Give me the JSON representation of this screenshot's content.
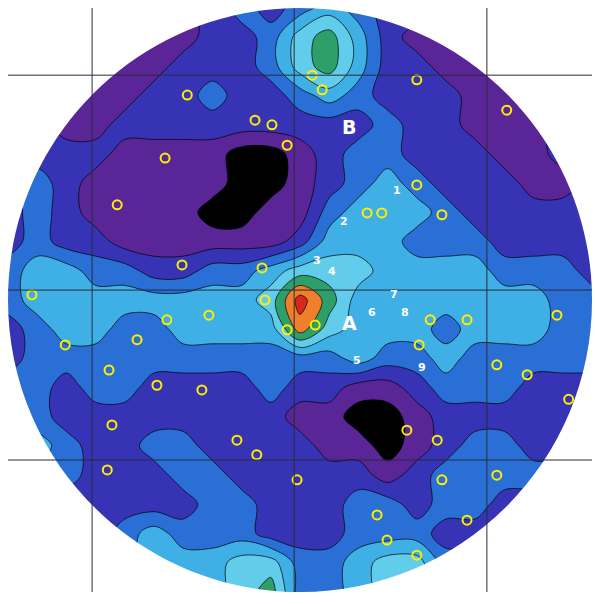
{
  "chart_data": {
    "type": "contour",
    "x": [
      0,
      5,
      10,
      15,
      20,
      25,
      30,
      35,
      40,
      45,
      50,
      55,
      60,
      65,
      70,
      75,
      80,
      85,
      90,
      95,
      100
    ],
    "y": [
      100,
      95,
      90,
      85,
      80,
      75,
      70,
      65,
      60,
      55,
      50,
      45,
      40,
      35,
      30,
      25,
      20,
      15,
      10,
      5,
      0
    ],
    "z": [
      [
        2,
        2,
        2,
        2,
        2,
        1,
        1,
        2,
        3,
        2,
        3,
        4,
        3,
        2,
        2,
        1,
        1,
        2,
        2,
        2,
        2
      ],
      [
        2,
        2,
        2,
        2,
        1,
        1,
        1,
        2,
        2,
        3,
        5,
        6,
        4,
        2,
        1,
        1,
        1,
        2,
        2,
        2,
        2
      ],
      [
        2,
        2,
        2,
        1,
        1,
        1,
        2,
        2,
        2,
        3,
        5,
        6,
        4,
        2,
        2,
        1,
        1,
        1,
        2,
        2,
        3
      ],
      [
        2,
        2,
        1,
        1,
        1,
        2,
        2,
        3,
        2,
        2,
        3,
        4,
        3,
        2,
        2,
        2,
        1,
        1,
        1,
        2,
        2
      ],
      [
        2,
        2,
        1,
        1,
        2,
        2,
        2,
        2,
        2,
        2,
        2,
        2,
        2,
        3,
        2,
        2,
        1,
        1,
        1,
        2,
        2
      ],
      [
        2,
        2,
        2,
        2,
        1,
        1,
        1,
        1,
        0,
        0,
        1,
        2,
        3,
        3,
        2,
        2,
        2,
        1,
        1,
        2,
        2
      ],
      [
        2,
        3,
        2,
        1,
        1,
        1,
        1,
        1,
        0,
        0,
        1,
        2,
        3,
        4,
        3,
        2,
        2,
        2,
        1,
        1,
        2
      ],
      [
        2,
        3,
        2,
        1,
        1,
        1,
        1,
        0,
        0,
        1,
        1,
        3,
        4,
        4,
        4,
        3,
        2,
        2,
        2,
        2,
        2
      ],
      [
        2,
        3,
        2,
        2,
        1,
        1,
        1,
        1,
        1,
        1,
        2,
        4,
        4,
        4,
        3,
        3,
        3,
        2,
        2,
        2,
        2
      ],
      [
        3,
        4,
        4,
        3,
        3,
        2,
        2,
        3,
        3,
        4,
        5,
        5,
        5,
        4,
        4,
        4,
        4,
        3,
        3,
        3,
        2
      ],
      [
        3,
        4,
        4,
        4,
        4,
        4,
        4,
        4,
        4,
        5,
        8,
        6,
        4,
        4,
        4,
        4,
        4,
        4,
        4,
        3,
        3
      ],
      [
        2,
        3,
        4,
        4,
        3,
        3,
        4,
        4,
        4,
        4,
        7,
        5,
        4,
        4,
        4,
        3,
        4,
        4,
        4,
        3,
        3
      ],
      [
        2,
        3,
        3,
        3,
        3,
        3,
        3,
        3,
        3,
        3,
        3,
        3,
        4,
        3,
        3,
        4,
        3,
        3,
        3,
        3,
        3
      ],
      [
        3,
        3,
        2,
        3,
        3,
        2,
        2,
        2,
        2,
        3,
        2,
        2,
        1,
        1,
        2,
        3,
        3,
        3,
        2,
        2,
        2
      ],
      [
        4,
        3,
        2,
        2,
        2,
        2,
        2,
        2,
        2,
        2,
        1,
        1,
        0,
        0,
        1,
        2,
        2,
        2,
        2,
        2,
        2
      ],
      [
        5,
        4,
        3,
        2,
        2,
        3,
        3,
        2,
        2,
        2,
        2,
        1,
        1,
        0,
        1,
        2,
        3,
        3,
        2,
        2,
        2
      ],
      [
        3,
        3,
        3,
        2,
        2,
        2,
        3,
        3,
        2,
        2,
        2,
        2,
        2,
        1,
        2,
        3,
        3,
        3,
        3,
        3,
        2
      ],
      [
        3,
        3,
        2,
        2,
        2,
        2,
        2,
        3,
        3,
        2,
        2,
        2,
        3,
        3,
        2,
        3,
        3,
        2,
        2,
        2,
        2
      ],
      [
        2,
        2,
        2,
        2,
        3,
        4,
        3,
        3,
        3,
        2,
        2,
        2,
        3,
        3,
        3,
        2,
        2,
        2,
        2,
        2,
        2
      ],
      [
        2,
        2,
        2,
        3,
        3,
        4,
        4,
        4,
        5,
        5,
        3,
        3,
        4,
        5,
        5,
        3,
        3,
        2,
        2,
        2,
        2
      ],
      [
        2,
        2,
        2,
        2,
        3,
        3,
        4,
        4,
        5,
        6,
        3,
        3,
        4,
        5,
        5,
        4,
        3,
        2,
        2,
        2,
        2
      ]
    ],
    "zlim": [
      0,
      8
    ],
    "colors": [
      "#000000",
      "#5a2597",
      "#3634b4",
      "#2a6fd6",
      "#3fb0e6",
      "#62cdea",
      "#2f9f6a",
      "#f07f2c",
      "#d8281c"
    ],
    "xlim": [
      0,
      100
    ],
    "ylim": [
      0,
      100
    ],
    "xticks": [
      14.4,
      49.0,
      82.0
    ],
    "yticks": [
      22.6,
      51.7,
      88.5
    ],
    "grid": true,
    "tick_labels": false,
    "series": [
      {
        "type": "scatter",
        "color": "#ffee00",
        "marker": "circle-open",
        "x": [
          52.6,
          52.1,
          53.8,
          42.3,
          45.2,
          47.8,
          26.9,
          18.7,
          74.3,
          61.5,
          64.0,
          70.0,
          29.8,
          43.5,
          44.0,
          34.4,
          27.2,
          22.1,
          9.8,
          17.3,
          25.5,
          33.2,
          17.8,
          47.8,
          72.3,
          70.4,
          78.6,
          94.0,
          4.1,
          83.7,
          88.9,
          96.0,
          68.3,
          73.5,
          74.3,
          49.5,
          39.2,
          17.0,
          78.6,
          63.2,
          64.9,
          70.0,
          42.6,
          85.4,
          30.7,
          70.0,
          83.7
        ],
        "y": [
          45.7,
          88.5,
          86.0,
          80.8,
          80.0,
          76.5,
          74.3,
          66.3,
          64.6,
          64.9,
          64.9,
          69.7,
          56.0,
          55.5,
          50.0,
          47.4,
          46.6,
          43.2,
          42.3,
          38.0,
          35.4,
          34.6,
          28.6,
          44.9,
          46.6,
          42.3,
          46.6,
          47.4,
          50.9,
          38.9,
          37.2,
          33.0,
          27.7,
          26.0,
          19.2,
          19.2,
          26.0,
          20.9,
          12.3,
          13.2,
          8.9,
          6.3,
          23.5,
          82.5,
          85.1,
          87.7,
          20.0
        ]
      }
    ],
    "annotations": [
      {
        "text": "B",
        "x": 58.4,
        "y": 79.6
      },
      {
        "text": "A",
        "x": 58.4,
        "y": 46.1
      },
      {
        "text": "1",
        "x": 66.6,
        "y": 68.8
      },
      {
        "text": "2",
        "x": 57.5,
        "y": 63.4
      },
      {
        "text": "3",
        "x": 52.9,
        "y": 56.7
      },
      {
        "text": "4",
        "x": 55.5,
        "y": 54.8
      },
      {
        "text": "5",
        "x": 59.8,
        "y": 39.7
      },
      {
        "text": "6",
        "x": 62.3,
        "y": 47.9
      },
      {
        "text": "7",
        "x": 66.1,
        "y": 51.0
      },
      {
        "text": "8",
        "x": 68.0,
        "y": 47.9
      },
      {
        "text": "9",
        "x": 70.9,
        "y": 38.5
      }
    ]
  }
}
